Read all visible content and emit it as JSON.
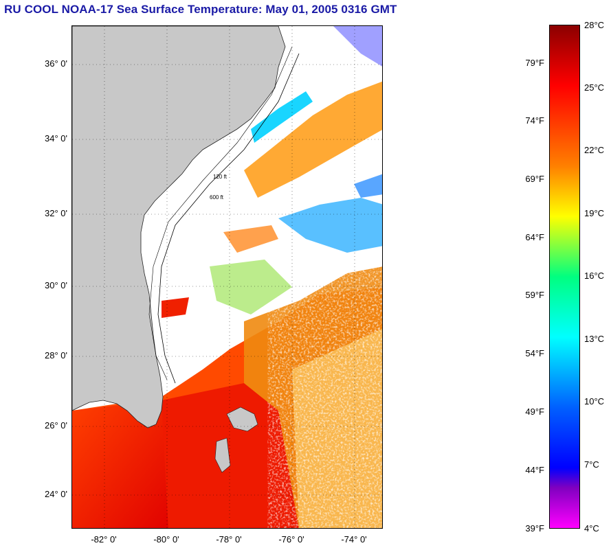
{
  "title": "RU COOL  NOAA-17  Sea Surface Temperature:  May 01, 2005 0316 GMT",
  "map": {
    "lat_labels": [
      "36° 0'",
      "34° 0'",
      "32° 0'",
      "30° 0'",
      "28° 0'",
      "26° 0'",
      "24° 0'"
    ],
    "lon_labels": [
      "-82° 0'",
      "-80° 0'",
      "-78° 0'",
      "-76° 0'",
      "-74° 0'"
    ],
    "land_color": "#c8c8c8",
    "cloud_color": "#ffffff",
    "contour_labels": [
      "120 ft",
      "600 ft"
    ]
  },
  "colorbar": {
    "fahrenheit_labels": [
      "79°F",
      "74°F",
      "69°F",
      "64°F",
      "59°F",
      "54°F",
      "49°F",
      "44°F",
      "39°F"
    ],
    "celsius_labels": [
      "28°C",
      "25°C",
      "22°C",
      "19°C",
      "16°C",
      "13°C",
      "10°C",
      "7°C",
      "4°C"
    ],
    "colors": [
      "#8b0000",
      "#ff0000",
      "#ff8000",
      "#ffff00",
      "#00ff80",
      "#00ffff",
      "#0060ff",
      "#0000ff",
      "#ff00ff"
    ]
  }
}
